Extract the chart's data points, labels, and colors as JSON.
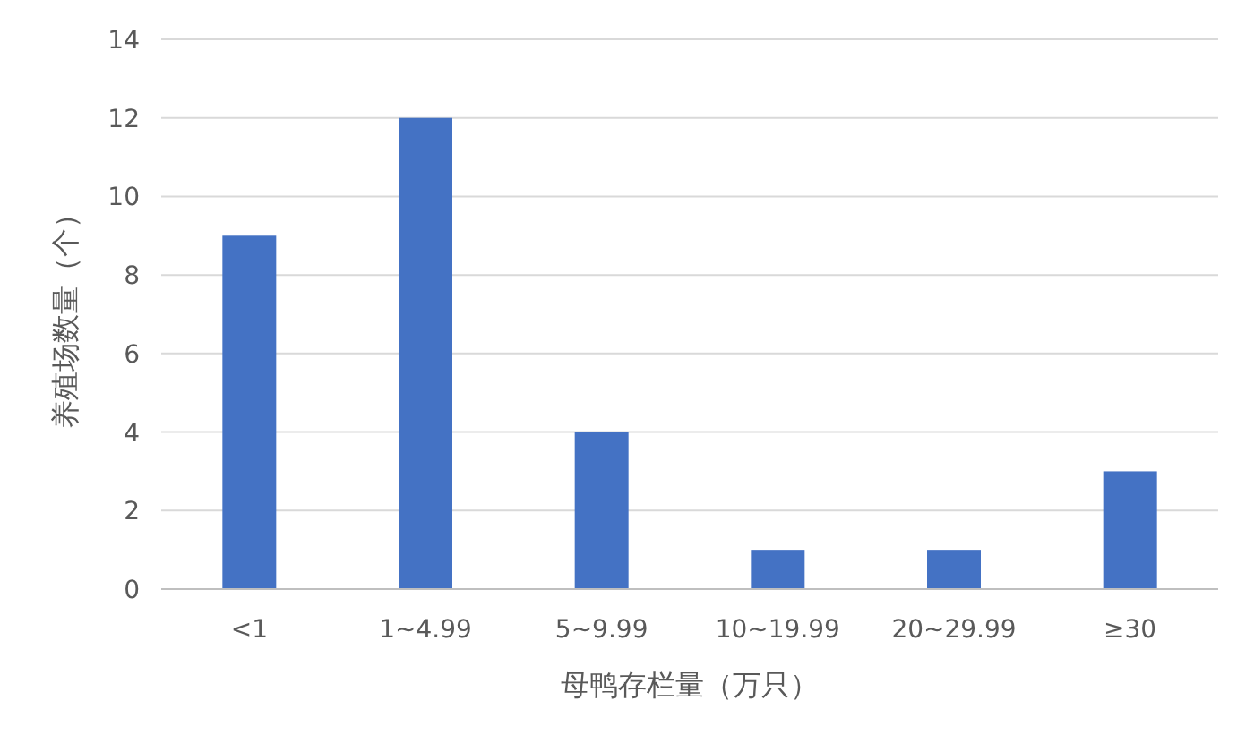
{
  "chart_data": {
    "type": "bar",
    "xlabel": "母鸭存栏量（万只）",
    "ylabel": "养殖场数量（个）",
    "categories": [
      "<1",
      "1~4.99",
      "5~9.99",
      "10~19.99",
      "20~29.99",
      "≥30"
    ],
    "values": [
      9,
      12,
      4,
      1,
      1,
      3
    ],
    "color": "#4472c4",
    "ylim": [
      0,
      14
    ],
    "yticks": [
      0,
      2,
      4,
      6,
      8,
      10,
      12,
      14
    ],
    "grid": "y"
  }
}
